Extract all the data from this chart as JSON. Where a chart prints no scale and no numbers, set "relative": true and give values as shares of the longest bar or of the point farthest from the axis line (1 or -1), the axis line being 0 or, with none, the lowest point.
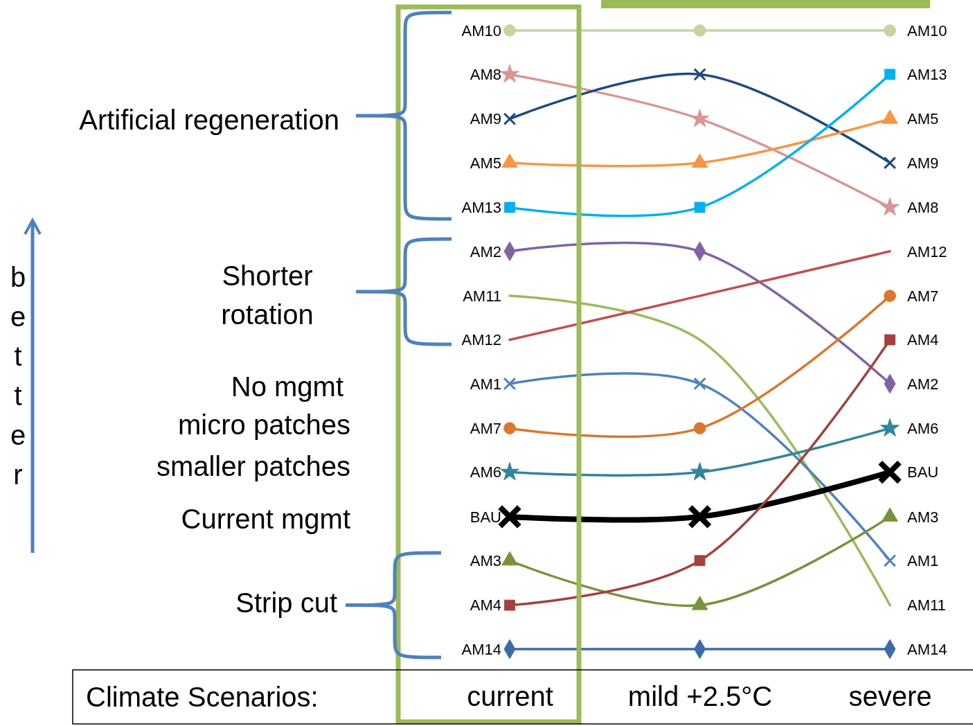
{
  "chart_data": {
    "type": "line",
    "relative": true,
    "categories": [
      "current",
      "mild +2.5°C",
      "severe"
    ],
    "xlabel": "Climate Scenarios:",
    "annotations": [
      "Artificial regeneration",
      "Shorter\nrotation",
      "No mgmt",
      "micro patches",
      "smaller patches",
      "Current mgmt",
      "Strip cut",
      "better"
    ],
    "series": [
      {
        "name": "AM10",
        "color": "#c3d69b",
        "marker": "circle",
        "values": [
          1,
          1,
          1
        ]
      },
      {
        "name": "AM8",
        "color": "#d99694",
        "marker": "star",
        "values": [
          0.929,
          0.857,
          0.714
        ]
      },
      {
        "name": "AM9",
        "color": "#1f497d",
        "marker": "cross",
        "values": [
          0.857,
          0.929,
          0.786
        ]
      },
      {
        "name": "AM5",
        "color": "#f79646",
        "marker": "triangle",
        "values": [
          0.786,
          0.786,
          0.857
        ]
      },
      {
        "name": "AM13",
        "color": "#00b0f0",
        "marker": "square",
        "values": [
          0.714,
          0.714,
          0.929
        ]
      },
      {
        "name": "AM2",
        "color": "#8064a2",
        "marker": "diamond",
        "values": [
          0.643,
          0.643,
          0.429
        ]
      },
      {
        "name": "AM11",
        "color": "#9bbb59",
        "marker": "none",
        "values": [
          0.571,
          0.5,
          0.071
        ]
      },
      {
        "name": "AM12",
        "color": "#c0504d",
        "marker": "none",
        "values": [
          0.5,
          0.571,
          0.643
        ]
      },
      {
        "name": "AM1",
        "color": "#4f81bd",
        "marker": "cross",
        "values": [
          0.429,
          0.429,
          0.143
        ]
      },
      {
        "name": "AM7",
        "color": "#d9772f",
        "marker": "circle",
        "values": [
          0.357,
          0.357,
          0.571
        ]
      },
      {
        "name": "AM6",
        "color": "#31859c",
        "marker": "star",
        "values": [
          0.286,
          0.286,
          0.357
        ]
      },
      {
        "name": "BAU",
        "color": "#000000",
        "marker": "cross",
        "values": [
          0.214,
          0.214,
          0.286
        ]
      },
      {
        "name": "AM3",
        "color": "#77933c",
        "marker": "triangle",
        "values": [
          0.143,
          0.071,
          0.214
        ]
      },
      {
        "name": "AM4",
        "color": "#a5403c",
        "marker": "square",
        "values": [
          0.071,
          0.143,
          0.5
        ]
      },
      {
        "name": "AM14",
        "color": "#3e6aa8",
        "marker": "diamond",
        "values": [
          0,
          0,
          0
        ]
      }
    ]
  }
}
